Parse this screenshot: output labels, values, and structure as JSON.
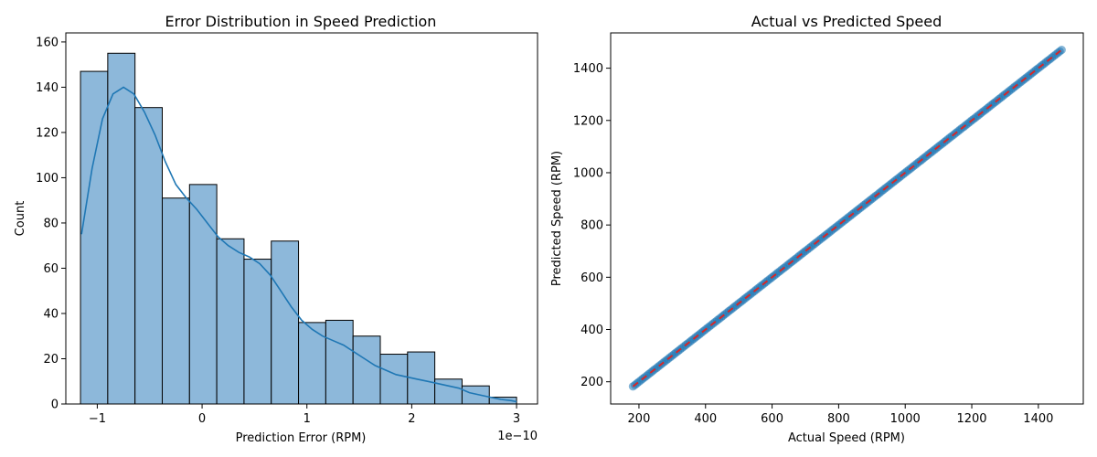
{
  "chart_data": [
    {
      "type": "bar",
      "subtype": "histogram-with-kde",
      "title": "Error Distribution in Speed Prediction",
      "xlabel": "Prediction Error (RPM)",
      "ylabel": "Count",
      "x_offset_text": "1e−10",
      "xlim": [
        -1.3,
        3.2
      ],
      "ylim": [
        0,
        164
      ],
      "x_ticks": [
        -1,
        0,
        1,
        2,
        3
      ],
      "x_tick_labels": [
        "−1",
        "0",
        "1",
        "2",
        "3"
      ],
      "y_ticks": [
        0,
        20,
        40,
        60,
        80,
        100,
        120,
        140,
        160
      ],
      "bin_edges": [
        -1.16,
        -0.9,
        -0.64,
        -0.38,
        -0.12,
        0.14,
        0.4,
        0.66,
        0.92,
        1.18,
        1.44,
        1.7,
        1.96,
        2.22,
        2.48,
        2.74,
        3.0
      ],
      "counts": [
        147,
        155,
        131,
        91,
        97,
        73,
        64,
        72,
        36,
        37,
        30,
        22,
        23,
        11,
        8,
        3
      ],
      "kde": {
        "x": [
          -1.15,
          -1.05,
          -0.95,
          -0.85,
          -0.75,
          -0.65,
          -0.55,
          -0.45,
          -0.35,
          -0.25,
          -0.15,
          -0.05,
          0.05,
          0.15,
          0.25,
          0.35,
          0.45,
          0.55,
          0.65,
          0.75,
          0.85,
          0.95,
          1.05,
          1.15,
          1.25,
          1.35,
          1.45,
          1.55,
          1.65,
          1.75,
          1.85,
          1.95,
          2.05,
          2.15,
          2.25,
          2.35,
          2.45,
          2.55,
          2.65,
          2.75,
          2.85,
          2.95,
          3.0
        ],
        "y": [
          75,
          104,
          126,
          137,
          140,
          137,
          129,
          119,
          107,
          97,
          91,
          86,
          80,
          74,
          70,
          67,
          65,
          62,
          57,
          50,
          43,
          37,
          33,
          30,
          28,
          26,
          23,
          20,
          17,
          15,
          13,
          12,
          11,
          10,
          9,
          8,
          7,
          5,
          4,
          3,
          2,
          1.5,
          1
        ]
      },
      "colors": {
        "bar_fill": "#8db8da",
        "bar_edge": "#000000",
        "kde_line": "#1f77b4"
      }
    },
    {
      "type": "scatter",
      "title": "Actual vs Predicted Speed",
      "xlabel": "Actual Speed (RPM)",
      "ylabel": "Predicted Speed (RPM)",
      "xlim": [
        115,
        1535
      ],
      "ylim": [
        115,
        1535
      ],
      "x_ticks": [
        200,
        400,
        600,
        800,
        1000,
        1200,
        1400
      ],
      "y_ticks": [
        200,
        400,
        600,
        800,
        1000,
        1200,
        1400
      ],
      "point_range": [
        182,
        1470
      ],
      "reference_line": {
        "from": [
          182,
          182
        ],
        "to": [
          1470,
          1470
        ],
        "style": "dashed"
      },
      "colors": {
        "points": "#1f77b4",
        "reference_line": "#d62728"
      }
    }
  ]
}
